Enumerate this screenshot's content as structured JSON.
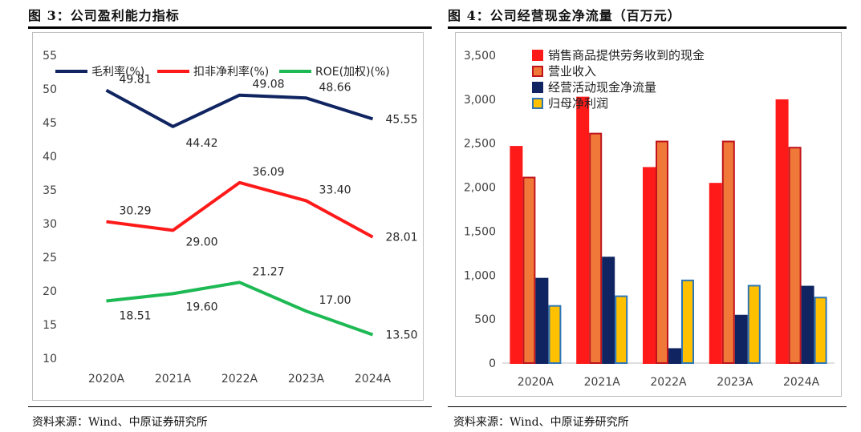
{
  "left": {
    "title": "图 3：公司盈利能力指标",
    "source": "资料来源：Wind、中原证券研究所"
  },
  "right": {
    "title": "图 4：公司经营现金净流量（百万元）",
    "source": "资料来源：Wind、中原证券研究所"
  },
  "chart_data": [
    {
      "type": "line",
      "title": "公司盈利能力指标",
      "categories": [
        "2020A",
        "2021A",
        "2022A",
        "2023A",
        "2024A"
      ],
      "ylim": [
        10,
        55
      ],
      "yticks": [
        10,
        15,
        20,
        25,
        30,
        35,
        40,
        45,
        50,
        55
      ],
      "grid": false,
      "legend": "top",
      "series": [
        {
          "name": "毛利率(%)",
          "color": "#0f2460",
          "values": [
            49.81,
            44.42,
            49.08,
            48.66,
            45.55
          ],
          "labels": [
            "49.81",
            "44.42",
            "49.08",
            "48.66",
            "45.55"
          ]
        },
        {
          "name": "扣非净利率(%)",
          "color": "#ff1a1a",
          "values": [
            30.29,
            29.0,
            36.09,
            33.4,
            28.01
          ],
          "labels": [
            "30.29",
            "29.00",
            "36.09",
            "33.40",
            "28.01"
          ]
        },
        {
          "name": "ROE(加权)(%)",
          "color": "#1db954",
          "values": [
            18.51,
            19.6,
            21.27,
            17.0,
            13.5
          ],
          "labels": [
            "18.51",
            "19.60",
            "21.27",
            "17.00",
            "13.50"
          ]
        }
      ]
    },
    {
      "type": "bar",
      "title": "公司经营现金净流量（百万元）",
      "categories": [
        "2020A",
        "2021A",
        "2022A",
        "2023A",
        "2024A"
      ],
      "ylim": [
        0,
        3500
      ],
      "yticks": [
        0,
        500,
        1000,
        1500,
        2000,
        2500,
        3000,
        3500
      ],
      "ytick_labels": [
        "0",
        "500",
        "1,000",
        "1,500",
        "2,000",
        "2,500",
        "3,000",
        "3,500"
      ],
      "grid": false,
      "legend": "top-left",
      "series": [
        {
          "name": "销售商品提供劳务收到的现金",
          "fill": "#ff1a1a",
          "edge": "#ff1a1a",
          "values": [
            2460,
            3020,
            2220,
            2040,
            2990
          ]
        },
        {
          "name": "营业收入",
          "fill": "#f07838",
          "edge": "#c0141c",
          "values": [
            2110,
            2610,
            2520,
            2520,
            2450
          ]
        },
        {
          "name": "经营活动现金净流量",
          "fill": "#0f2460",
          "edge": "#0f2460",
          "values": [
            960,
            1200,
            160,
            540,
            870
          ]
        },
        {
          "name": "归母净利润",
          "fill": "#ffc000",
          "edge": "#2e75b6",
          "values": [
            650,
            760,
            940,
            880,
            745
          ]
        }
      ]
    }
  ]
}
